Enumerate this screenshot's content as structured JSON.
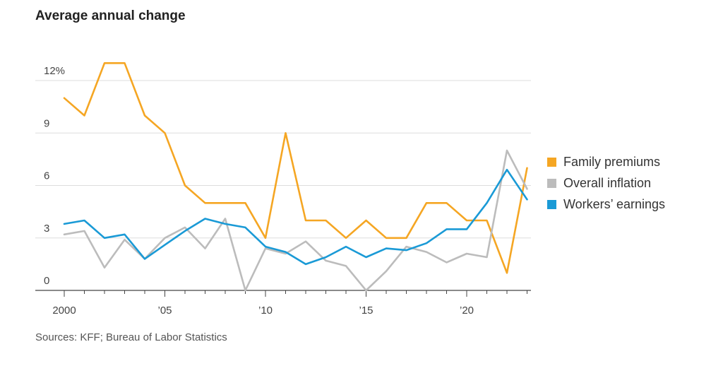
{
  "chart_data": {
    "type": "line",
    "title": "Average annual change",
    "x": [
      2000,
      2001,
      2002,
      2003,
      2004,
      2005,
      2006,
      2007,
      2008,
      2009,
      2010,
      2011,
      2012,
      2013,
      2014,
      2015,
      2016,
      2017,
      2018,
      2019,
      2020,
      2021,
      2022,
      2023
    ],
    "xlim": [
      1999.5,
      2023.5
    ],
    "xtick_values": [
      2000,
      2005,
      2010,
      2015,
      2020
    ],
    "xtick_labels": [
      "2000",
      "’05",
      "’10",
      "’15",
      "’20"
    ],
    "ylim": [
      0,
      12
    ],
    "ytick_values": [
      0,
      3,
      6,
      9,
      12
    ],
    "ytick_labels": [
      "0",
      "3",
      "6",
      "9",
      "12%"
    ],
    "grid": true,
    "legend_position": "right",
    "series": [
      {
        "name": "Family premiums",
        "color": "#f5a623",
        "values": [
          11,
          10,
          13,
          13,
          10,
          9,
          6,
          5,
          5,
          5,
          3,
          9,
          4,
          4,
          3,
          4,
          3,
          3,
          5,
          5,
          4,
          4,
          1,
          7
        ]
      },
      {
        "name": "Overall inflation",
        "color": "#bcbcbc",
        "values": [
          3.2,
          3.4,
          1.3,
          2.9,
          1.8,
          3.0,
          3.6,
          2.4,
          4.1,
          0.0,
          2.4,
          2.1,
          2.8,
          1.7,
          1.4,
          0.0,
          1.1,
          2.5,
          2.2,
          1.6,
          2.1,
          1.9,
          8.0,
          5.8
        ]
      },
      {
        "name": "Workers’ earnings",
        "color": "#1a9ad6",
        "values": [
          3.8,
          4.0,
          3.0,
          3.2,
          1.8,
          2.6,
          3.4,
          4.1,
          3.8,
          3.6,
          2.5,
          2.2,
          1.5,
          1.9,
          2.5,
          1.9,
          2.4,
          2.3,
          2.7,
          3.5,
          3.5,
          5.0,
          6.9,
          5.2
        ]
      }
    ],
    "source": "Sources: KFF; Bureau of Labor Statistics"
  }
}
